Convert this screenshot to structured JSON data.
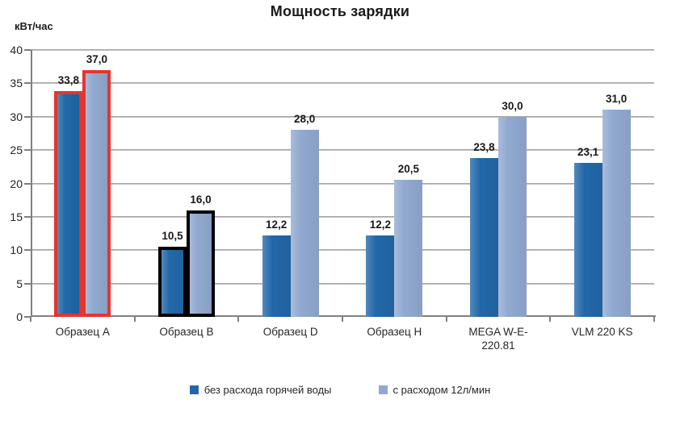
{
  "chart_data": {
    "type": "bar",
    "title": "Мощность зарядки",
    "ylabel": "кВт/час",
    "xlabel": "",
    "ylim": [
      0,
      40
    ],
    "ytick_step": 5,
    "grid": true,
    "legend_position": "bottom",
    "categories": [
      "Образец A",
      "Образец B",
      "Образец D",
      "Образец H",
      "MEGA W-E-\n220.81",
      "VLM 220 KS"
    ],
    "series": [
      {
        "name": "без расхода горячей воды",
        "color": "#2268A8",
        "values": [
          33.8,
          10.5,
          12.2,
          12.2,
          23.8,
          23.1
        ],
        "value_labels": [
          "33,8",
          "10,5",
          "12,2",
          "12,2",
          "23,8",
          "23,1"
        ]
      },
      {
        "name": "с расходом 12л/мин",
        "color": "#91A9D0",
        "values": [
          37.0,
          16.0,
          28.0,
          20.5,
          30.0,
          31.0
        ],
        "value_labels": [
          "37,0",
          "16,0",
          "28,0",
          "20,5",
          "30,0",
          "31,0"
        ]
      }
    ],
    "group_outline_colors": [
      "#E2362F",
      "#000000",
      null,
      null,
      null,
      null
    ],
    "axis_color": "#808080",
    "gridline_color": "#A6A6A6",
    "text_color": "#1A1A1A",
    "background_color": "#FFFFFF"
  }
}
